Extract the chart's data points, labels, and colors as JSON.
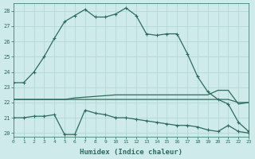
{
  "xlabel": "Humidex (Indice chaleur)",
  "bg_color": "#ceeaea",
  "line_color": "#2e6b5e",
  "grid_color": "#b0d8d8",
  "xlim": [
    0,
    23
  ],
  "ylim": [
    19.75,
    28.5
  ],
  "yticks": [
    20,
    21,
    22,
    23,
    24,
    25,
    26,
    27,
    28
  ],
  "xticks": [
    0,
    1,
    2,
    3,
    4,
    5,
    6,
    7,
    8,
    9,
    10,
    11,
    12,
    13,
    14,
    15,
    16,
    17,
    18,
    19,
    20,
    21,
    22,
    23
  ],
  "line1_x": [
    0,
    1,
    2,
    3,
    4,
    5,
    6,
    7,
    8,
    9,
    10,
    11,
    12,
    13,
    14,
    15,
    16,
    17,
    18,
    19,
    20,
    21,
    22,
    23
  ],
  "line1_y": [
    23.3,
    23.3,
    24.0,
    25.0,
    26.2,
    27.3,
    27.7,
    28.1,
    27.6,
    27.6,
    27.8,
    28.2,
    27.7,
    26.5,
    26.4,
    26.5,
    26.5,
    25.2,
    23.7,
    22.7,
    22.2,
    21.9,
    20.7,
    20.1
  ],
  "line2_x": [
    0,
    3,
    6,
    19,
    20,
    21,
    22,
    23
  ],
  "line2_y": [
    22.2,
    22.2,
    22.2,
    22.2,
    22.2,
    22.2,
    22.0,
    22.0
  ],
  "line3_x": [
    0,
    5,
    6,
    10,
    11,
    12,
    13,
    14,
    15,
    16,
    17,
    18,
    19,
    20,
    21,
    22,
    23
  ],
  "line3_y": [
    22.2,
    22.2,
    22.3,
    22.5,
    22.5,
    22.5,
    22.5,
    22.5,
    22.5,
    22.5,
    22.5,
    22.5,
    22.5,
    22.8,
    22.8,
    21.9,
    22.0
  ],
  "line4_x": [
    0,
    1,
    2,
    3,
    4,
    5,
    6,
    7,
    8,
    9,
    10,
    11,
    12,
    13,
    14,
    15,
    16,
    17,
    18,
    19,
    20,
    21,
    22,
    23
  ],
  "line4_y": [
    21.0,
    21.0,
    21.1,
    21.1,
    21.2,
    19.9,
    19.9,
    21.5,
    21.3,
    21.2,
    21.0,
    21.0,
    20.9,
    20.8,
    20.7,
    20.6,
    20.5,
    20.5,
    20.4,
    20.2,
    20.1,
    20.5,
    20.1,
    20.0
  ]
}
